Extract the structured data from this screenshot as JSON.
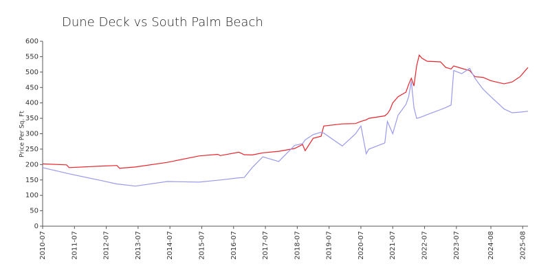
{
  "chart_data": {
    "type": "line",
    "title": "Dune Deck vs South Palm Beach",
    "ylabel": "Price Per Sq. Ft",
    "x": [
      "2010-07",
      "2011-04",
      "2011-05",
      "2012-05",
      "2012-11",
      "2012-12",
      "2013-06",
      "2014-06",
      "2015-06",
      "2016-01",
      "2016-02",
      "2016-09",
      "2016-11",
      "2017-02",
      "2017-06",
      "2017-12",
      "2018-06",
      "2018-09",
      "2018-10",
      "2019-01",
      "2019-04",
      "2019-05",
      "2019-12",
      "2020-05",
      "2020-07",
      "2020-09",
      "2020-10",
      "2021-04",
      "2021-05",
      "2021-06",
      "2021-07",
      "2021-09",
      "2021-12",
      "2022-01",
      "2022-02",
      "2022-03",
      "2022-04",
      "2022-05",
      "2022-06",
      "2022-08",
      "2023-01",
      "2023-03",
      "2023-05",
      "2023-06",
      "2023-09",
      "2023-12",
      "2024-02",
      "2024-05",
      "2024-08",
      "2025-01",
      "2025-04",
      "2025-07",
      "2025-10"
    ],
    "series": [
      {
        "color": "#e8232b",
        "values": [
          202,
          199,
          190,
          195,
          197,
          188,
          192,
          207,
          228,
          233,
          229,
          240,
          232,
          231,
          238,
          243,
          252,
          265,
          245,
          285,
          292,
          325,
          332,
          333,
          340,
          345,
          350,
          358,
          365,
          378,
          400,
          420,
          435,
          460,
          480,
          455,
          520,
          555,
          545,
          535,
          533,
          515,
          510,
          520,
          512,
          505,
          485,
          483,
          472,
          462,
          468,
          485,
          515
        ]
      },
      {
        "color": "#9999ee",
        "values": [
          190,
          172,
          170,
          148,
          137,
          136,
          130,
          145,
          143,
          149,
          150,
          157,
          158,
          190,
          225,
          210,
          262,
          268,
          280,
          297,
          305,
          302,
          260,
          300,
          325,
          235,
          250,
          270,
          340,
          320,
          300,
          360,
          395,
          420,
          470,
          385,
          350,
          352,
          355,
          362,
          378,
          385,
          393,
          505,
          495,
          512,
          480,
          445,
          420,
          380,
          368,
          370,
          373
        ]
      }
    ],
    "xlim": [
      "2010-07",
      "2025-10"
    ],
    "xticks": [
      "2010-07",
      "2011-07",
      "2012-07",
      "2013-07",
      "2014-07",
      "2015-07",
      "2016-07",
      "2017-07",
      "2018-07",
      "2019-07",
      "2020-07",
      "2021-07",
      "2022-07",
      "2023-07",
      "2024-08",
      "2025-08"
    ],
    "ylim": [
      0,
      600
    ],
    "yticks": [
      0,
      50,
      100,
      150,
      200,
      250,
      300,
      350,
      400,
      450,
      500,
      550,
      600
    ],
    "grid": false
  }
}
